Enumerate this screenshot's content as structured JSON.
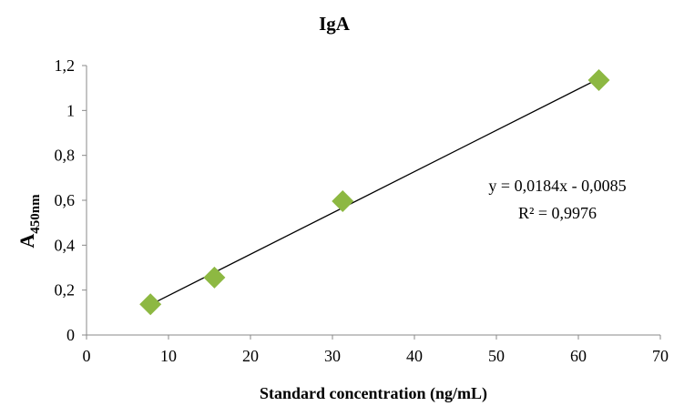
{
  "chart_data": {
    "type": "scatter",
    "title": "IgA",
    "xlabel": "Standard concentration (ng/mL)",
    "ylabel": {
      "main": "A",
      "sub": "450nm"
    },
    "xlim": [
      0,
      70
    ],
    "ylim": [
      0,
      1.2
    ],
    "x_ticks": [
      0,
      10,
      20,
      30,
      40,
      50,
      60,
      70
    ],
    "x_tick_labels": [
      "0",
      "10",
      "20",
      "30",
      "40",
      "50",
      "60",
      "70"
    ],
    "y_ticks": [
      0,
      0.2,
      0.4,
      0.6,
      0.8,
      1.0,
      1.2
    ],
    "y_tick_labels": [
      "0",
      "0,2",
      "0,4",
      "0,6",
      "0,8",
      "1",
      "1,2"
    ],
    "grid": false,
    "series": [
      {
        "marker": "diamond",
        "color": "#8db842",
        "points": [
          {
            "x": 7.8,
            "y": 0.137
          },
          {
            "x": 15.6,
            "y": 0.256
          },
          {
            "x": 31.25,
            "y": 0.596
          },
          {
            "x": 62.5,
            "y": 1.135
          }
        ]
      }
    ],
    "trendline": {
      "type": "linear",
      "slope": 0.0184,
      "intercept": -0.0085,
      "x_range": [
        7.8,
        62.5
      ],
      "color": "#000000"
    },
    "annotations": {
      "equation": "y = 0,0184x - 0,0085",
      "r_squared": "R² = 0,9976"
    }
  }
}
